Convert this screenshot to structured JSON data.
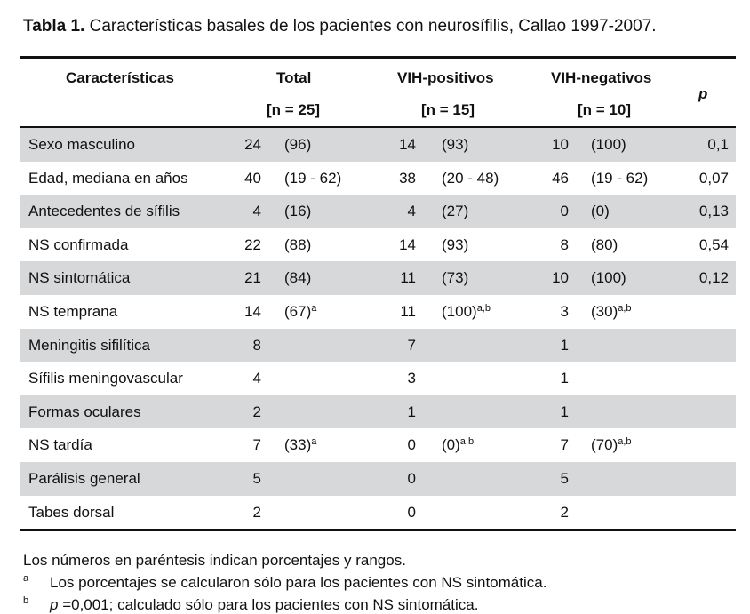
{
  "caption": {
    "label": "Tabla 1.",
    "text": "Características basales de los pacientes con neurosífilis, Callao 1997-2007."
  },
  "header": {
    "col_characteristics": "Características",
    "col_total": "Total",
    "col_total_n": "[n = 25]",
    "col_hiv_pos": "VIH-positivos",
    "col_hiv_pos_n": "[n = 15]",
    "col_hiv_neg": "VIH-negativos",
    "col_hiv_neg_n": "[n = 10]",
    "col_p": "p"
  },
  "rows": [
    {
      "label": "Sexo masculino",
      "n1": "24",
      "p1": "(96)",
      "s1": "",
      "n2": "14",
      "p2": "(93)",
      "s2": "",
      "n3": "10",
      "p3": "(100)",
      "s3": "",
      "p": "0,1",
      "shaded": true
    },
    {
      "label": "Edad, mediana en años",
      "n1": "40",
      "p1": "(19 - 62)",
      "s1": "",
      "n2": "38",
      "p2": "(20 - 48)",
      "s2": "",
      "n3": "46",
      "p3": "(19 - 62)",
      "s3": "",
      "p": "0,07",
      "shaded": false
    },
    {
      "label": "Antecedentes de sífilis",
      "n1": "4",
      "p1": "(16)",
      "s1": "",
      "n2": "4",
      "p2": "(27)",
      "s2": "",
      "n3": "0",
      "p3": "(0)",
      "s3": "",
      "p": "0,13",
      "shaded": true
    },
    {
      "label": "NS confirmada",
      "n1": "22",
      "p1": "(88)",
      "s1": "",
      "n2": "14",
      "p2": "(93)",
      "s2": "",
      "n3": "8",
      "p3": "(80)",
      "s3": "",
      "p": "0,54",
      "shaded": false
    },
    {
      "label": "NS sintomática",
      "n1": "21",
      "p1": "(84)",
      "s1": "",
      "n2": "11",
      "p2": "(73)",
      "s2": "",
      "n3": "10",
      "p3": "(100)",
      "s3": "",
      "p": "0,12",
      "shaded": true
    },
    {
      "label": "NS temprana",
      "n1": "14",
      "p1": "(67)",
      "s1": "a",
      "n2": "11",
      "p2": "(100)",
      "s2": "a,b",
      "n3": "3",
      "p3": "(30)",
      "s3": "a,b",
      "p": "",
      "shaded": false
    },
    {
      "label": "Meningitis sifilítica",
      "n1": "8",
      "p1": "",
      "s1": "",
      "n2": "7",
      "p2": "",
      "s2": "",
      "n3": "1",
      "p3": "",
      "s3": "",
      "p": "",
      "shaded": true
    },
    {
      "label": "Sífilis meningovascular",
      "n1": "4",
      "p1": "",
      "s1": "",
      "n2": "3",
      "p2": "",
      "s2": "",
      "n3": "1",
      "p3": "",
      "s3": "",
      "p": "",
      "shaded": false
    },
    {
      "label": "Formas oculares",
      "n1": "2",
      "p1": "",
      "s1": "",
      "n2": "1",
      "p2": "",
      "s2": "",
      "n3": "1",
      "p3": "",
      "s3": "",
      "p": "",
      "shaded": true
    },
    {
      "label": "NS tardía",
      "n1": "7",
      "p1": "(33)",
      "s1": "a",
      "n2": "0",
      "p2": "(0)",
      "s2": "a,b",
      "n3": "7",
      "p3": "(70)",
      "s3": "a,b",
      "p": "",
      "shaded": false
    },
    {
      "label": "Parálisis general",
      "n1": "5",
      "p1": "",
      "s1": "",
      "n2": "0",
      "p2": "",
      "s2": "",
      "n3": "5",
      "p3": "",
      "s3": "",
      "p": "",
      "shaded": true
    },
    {
      "label": "Tabes dorsal",
      "n1": "2",
      "p1": "",
      "s1": "",
      "n2": "0",
      "p2": "",
      "s2": "",
      "n3": "2",
      "p3": "",
      "s3": "",
      "p": "",
      "shaded": false
    }
  ],
  "footer": {
    "note": "Los números en paréntesis indican porcentajes y rangos.",
    "fn_a_mark": "a",
    "fn_a_text": "Los porcentajes se calcularon sólo para los pacientes con NS sintomática.",
    "fn_b_mark": "b",
    "fn_b_p": "p",
    "fn_b_text": " =0,001; calculado sólo para los pacientes con NS sintomática."
  },
  "colors": {
    "row_shade": "#d7d8da",
    "rule": "#111111"
  }
}
